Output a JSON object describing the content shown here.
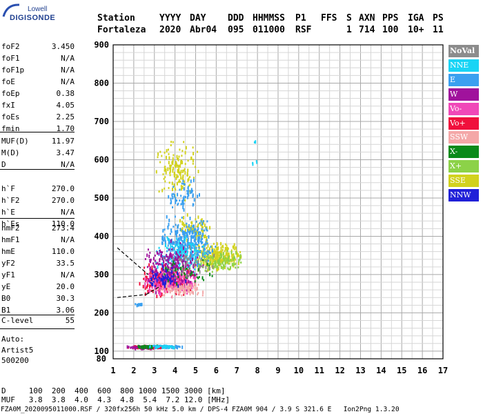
{
  "logo": {
    "line1": "Lowell",
    "line2": "DIGISONDE"
  },
  "header": {
    "labels": [
      "Station",
      "YYYY",
      "DAY",
      "DDD",
      "HHMMSS",
      "P1",
      "FFS",
      "S",
      "AXN",
      "PPS",
      "IGA",
      "PS"
    ],
    "values": [
      "Fortaleza",
      "2020",
      "Abr04",
      "095",
      "011000",
      "RSF",
      "",
      "1",
      "714",
      "100",
      "10+",
      "11"
    ]
  },
  "params_group1": [
    {
      "name": "foF2",
      "value": "3.450"
    },
    {
      "name": "foF1",
      "value": "N/A"
    },
    {
      "name": "foF1p",
      "value": "N/A"
    },
    {
      "name": "foE",
      "value": "N/A"
    },
    {
      "name": "foEp",
      "value": "0.38"
    },
    {
      "name": "fxI",
      "value": "4.05"
    },
    {
      "name": "foEs",
      "value": "2.25"
    },
    {
      "name": "fmin",
      "value": "1.70"
    }
  ],
  "params_group2": [
    {
      "name": "MUF(D)",
      "value": "11.97"
    },
    {
      "name": "M(D)",
      "value": "3.47"
    },
    {
      "name": "D",
      "value": "N/A"
    }
  ],
  "params_group3": [
    {
      "name": "h`F",
      "value": "270.0"
    },
    {
      "name": "h`F2",
      "value": "270.0"
    },
    {
      "name": "h`E",
      "value": "N/A"
    },
    {
      "name": "h`Es",
      "value": "110.0"
    }
  ],
  "params_group4": [
    {
      "name": "hmF2",
      "value": "273.4"
    },
    {
      "name": "hmF1",
      "value": "N/A"
    },
    {
      "name": "hmE",
      "value": "110.0"
    },
    {
      "name": "yF2",
      "value": "33.5"
    },
    {
      "name": "yF1",
      "value": "N/A"
    },
    {
      "name": "yE",
      "value": "20.0"
    },
    {
      "name": "B0",
      "value": "30.3"
    },
    {
      "name": "B1",
      "value": "3.06"
    }
  ],
  "clevel": {
    "name": "C-level",
    "value": "55"
  },
  "auto": {
    "line1": "Auto:",
    "line2": "Artist5",
    "line3": "500200"
  },
  "legend": [
    {
      "label": "NoVal",
      "color": "#8c8c8c"
    },
    {
      "label": "NNE",
      "color": "#19d4f5"
    },
    {
      "label": "E",
      "color": "#3aa0f0"
    },
    {
      "label": "W",
      "color": "#a0129c"
    },
    {
      "label": "Vo-",
      "color": "#f048b8"
    },
    {
      "label": "Vo+",
      "color": "#f0103c"
    },
    {
      "label": "SSW",
      "color": "#f4a8a8"
    },
    {
      "label": "X-",
      "color": "#0a8a1a"
    },
    {
      "label": "X+",
      "color": "#8cd248"
    },
    {
      "label": "SSE",
      "color": "#d2d21e"
    },
    {
      "label": "NNW",
      "color": "#2020d8"
    }
  ],
  "footer": {
    "d_line": "D     100  200  400  600  800 1000 1500 3000 [km]",
    "muf_line": "MUF   3.8  3.8  4.0  4.3  4.8  5.4  7.2 12.0 [MHz]",
    "file_line": "FZA0M_2020095011000.RSF / 320fx256h 50 kHz 5.0 km / DPS-4 FZA0M 904 / 3.9 S 321.6 E   Ion2Png 1.3.20"
  },
  "chart_data": {
    "type": "scatter",
    "xlabel": "",
    "ylabel": "",
    "x_ticks": [
      1,
      2,
      3,
      4,
      5,
      6,
      7,
      8,
      9,
      10,
      11,
      12,
      13,
      14,
      15,
      16,
      17
    ],
    "y_ticks": [
      100,
      200,
      300,
      400,
      500,
      600,
      700,
      800,
      900
    ],
    "y_bottom_label": "80",
    "xlim": [
      1,
      17
    ],
    "ylim": [
      80,
      900
    ],
    "grid": true,
    "clusters": [
      {
        "mode": "SSE",
        "x": [
          3.0,
          5.2
        ],
        "y": [
          490,
          670
        ],
        "n": 140
      },
      {
        "mode": "SSE",
        "x": [
          4.8,
          7.3
        ],
        "y": [
          300,
          400
        ],
        "n": 260
      },
      {
        "mode": "SSE",
        "x": [
          4.0,
          5.8
        ],
        "y": [
          380,
          470
        ],
        "n": 80
      },
      {
        "mode": "E",
        "x": [
          3.0,
          6.0
        ],
        "y": [
          300,
          470
        ],
        "n": 320
      },
      {
        "mode": "E",
        "x": [
          3.6,
          5.2
        ],
        "y": [
          460,
          560
        ],
        "n": 60
      },
      {
        "mode": "NNE",
        "x": [
          3.0,
          5.5
        ],
        "y": [
          290,
          420
        ],
        "n": 120
      },
      {
        "mode": "Vo+",
        "x": [
          2.2,
          5.0
        ],
        "y": [
          240,
          340
        ],
        "n": 300
      },
      {
        "mode": "Vo-",
        "x": [
          2.2,
          5.2
        ],
        "y": [
          240,
          330
        ],
        "n": 220
      },
      {
        "mode": "W",
        "x": [
          2.4,
          5.4
        ],
        "y": [
          250,
          400
        ],
        "n": 220
      },
      {
        "mode": "SSW",
        "x": [
          3.0,
          5.5
        ],
        "y": [
          240,
          290
        ],
        "n": 90
      },
      {
        "mode": "X+",
        "x": [
          5.0,
          7.5
        ],
        "y": [
          300,
          380
        ],
        "n": 80
      },
      {
        "mode": "X-",
        "x": [
          3.0,
          6.0
        ],
        "y": [
          270,
          350
        ],
        "n": 40
      },
      {
        "mode": "NNW",
        "x": [
          2.4,
          4.5
        ],
        "y": [
          260,
          330
        ],
        "n": 60
      },
      {
        "mode": "NoVal",
        "x": [
          3.0,
          6.0
        ],
        "y": [
          270,
          400
        ],
        "n": 40
      },
      {
        "mode": "E",
        "x": [
          1.8,
          4.4
        ],
        "y": [
          112,
          118
        ],
        "n": 120
      },
      {
        "mode": "Vo+",
        "x": [
          1.6,
          3.4
        ],
        "y": [
          110,
          118
        ],
        "n": 60
      },
      {
        "mode": "W",
        "x": [
          1.6,
          3.0
        ],
        "y": [
          110,
          117
        ],
        "n": 40
      },
      {
        "mode": "X-",
        "x": [
          1.9,
          3.3
        ],
        "y": [
          112,
          118
        ],
        "n": 30
      },
      {
        "mode": "NNE",
        "x": [
          2.6,
          4.2
        ],
        "y": [
          112,
          118
        ],
        "n": 30
      },
      {
        "mode": "E",
        "x": [
          1.8,
          2.6
        ],
        "y": [
          222,
          228
        ],
        "n": 14
      },
      {
        "mode": "NNE",
        "x": [
          7.6,
          8.0
        ],
        "y": [
          585,
          600
        ],
        "n": 4
      },
      {
        "mode": "NNE",
        "x": [
          7.8,
          7.9
        ],
        "y": [
          640,
          655
        ],
        "n": 3
      }
    ],
    "trace_lines": [
      {
        "x": [
          1.2,
          2.6
        ],
        "y": [
          240,
          248
        ]
      },
      {
        "x": [
          2.6,
          3.3
        ],
        "y": [
          248,
          270
        ]
      },
      {
        "x": [
          1.2,
          2.7
        ],
        "y": [
          370,
          300
        ]
      }
    ]
  }
}
